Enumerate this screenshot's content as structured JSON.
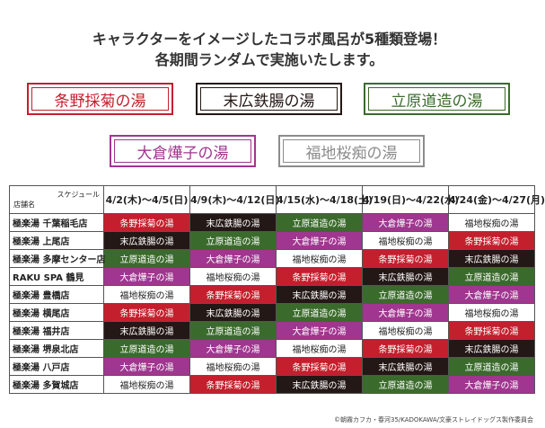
{
  "header": {
    "lines": [
      "キャラクターをイメージしたコラボ風呂が5種類登場！",
      "各期間ランダムで実施いたします。"
    ]
  },
  "baths": [
    {
      "name": "条野採菊の湯",
      "color": "#c41f2c",
      "cell_fill": "#c41f2c",
      "cell_text": "#ffffff"
    },
    {
      "name": "末広鉄腸の湯",
      "color": "#231815",
      "cell_fill": "#231815",
      "cell_text": "#ffffff"
    },
    {
      "name": "立原道造の湯",
      "color": "#3b6b2c",
      "cell_fill": "#3b6b2c",
      "cell_text": "#ffffff"
    },
    {
      "name": "大倉燁子の湯",
      "color": "#a0368f",
      "cell_fill": "#a0368f",
      "cell_text": "#ffffff"
    },
    {
      "name": "福地桜痴の湯",
      "color": "#8c8c8c",
      "cell_fill": "#ffffff",
      "cell_text": "#222222"
    }
  ],
  "table": {
    "corner_top": "スケジュール",
    "corner_bottom": "店舗名",
    "periods": [
      "4/2(木)～4/5(日)",
      "4/9(木)～4/12(日)",
      "4/15(水)～4/18(土)",
      "4/19(日)～4/22(水)",
      "4/24(金)～4/27(月)"
    ],
    "rows": [
      {
        "store": "極楽湯 千葉稲毛店",
        "cells": [
          "条野採菊の湯",
          "末広鉄腸の湯",
          "立原道造の湯",
          "大倉燁子の湯",
          "福地桜痴の湯"
        ]
      },
      {
        "store": "極楽湯 上尾店",
        "cells": [
          "末広鉄腸の湯",
          "立原道造の湯",
          "大倉燁子の湯",
          "福地桜痴の湯",
          "条野採菊の湯"
        ]
      },
      {
        "store": "極楽湯 多摩センター店",
        "cells": [
          "立原道造の湯",
          "大倉燁子の湯",
          "福地桜痴の湯",
          "条野採菊の湯",
          "末広鉄腸の湯"
        ]
      },
      {
        "store": "RAKU SPA 鶴見",
        "cells": [
          "大倉燁子の湯",
          "福地桜痴の湯",
          "条野採菊の湯",
          "末広鉄腸の湯",
          "立原道造の湯"
        ]
      },
      {
        "store": "極楽湯 豊橋店",
        "cells": [
          "福地桜痴の湯",
          "条野採菊の湯",
          "末広鉄腸の湯",
          "立原道造の湯",
          "大倉燁子の湯"
        ]
      },
      {
        "store": "極楽湯 横尾店",
        "cells": [
          "条野採菊の湯",
          "末広鉄腸の湯",
          "立原道造の湯",
          "大倉燁子の湯",
          "福地桜痴の湯"
        ]
      },
      {
        "store": "極楽湯 福井店",
        "cells": [
          "末広鉄腸の湯",
          "立原道造の湯",
          "大倉燁子の湯",
          "福地桜痴の湯",
          "条野採菊の湯"
        ]
      },
      {
        "store": "極楽湯 堺泉北店",
        "cells": [
          "立原道造の湯",
          "大倉燁子の湯",
          "福地桜痴の湯",
          "条野採菊の湯",
          "末広鉄腸の湯"
        ]
      },
      {
        "store": "極楽湯 八戸店",
        "cells": [
          "大倉燁子の湯",
          "福地桜痴の湯",
          "条野採菊の湯",
          "末広鉄腸の湯",
          "立原道造の湯"
        ]
      },
      {
        "store": "極楽湯 多賀城店",
        "cells": [
          "福地桜痴の湯",
          "条野採菊の湯",
          "末広鉄腸の湯",
          "立原道造の湯",
          "大倉燁子の湯"
        ]
      }
    ]
  },
  "copyright": "©朝霧カフカ・春河35/KADOKAWA/文豪ストレイドッグス製作委員会"
}
